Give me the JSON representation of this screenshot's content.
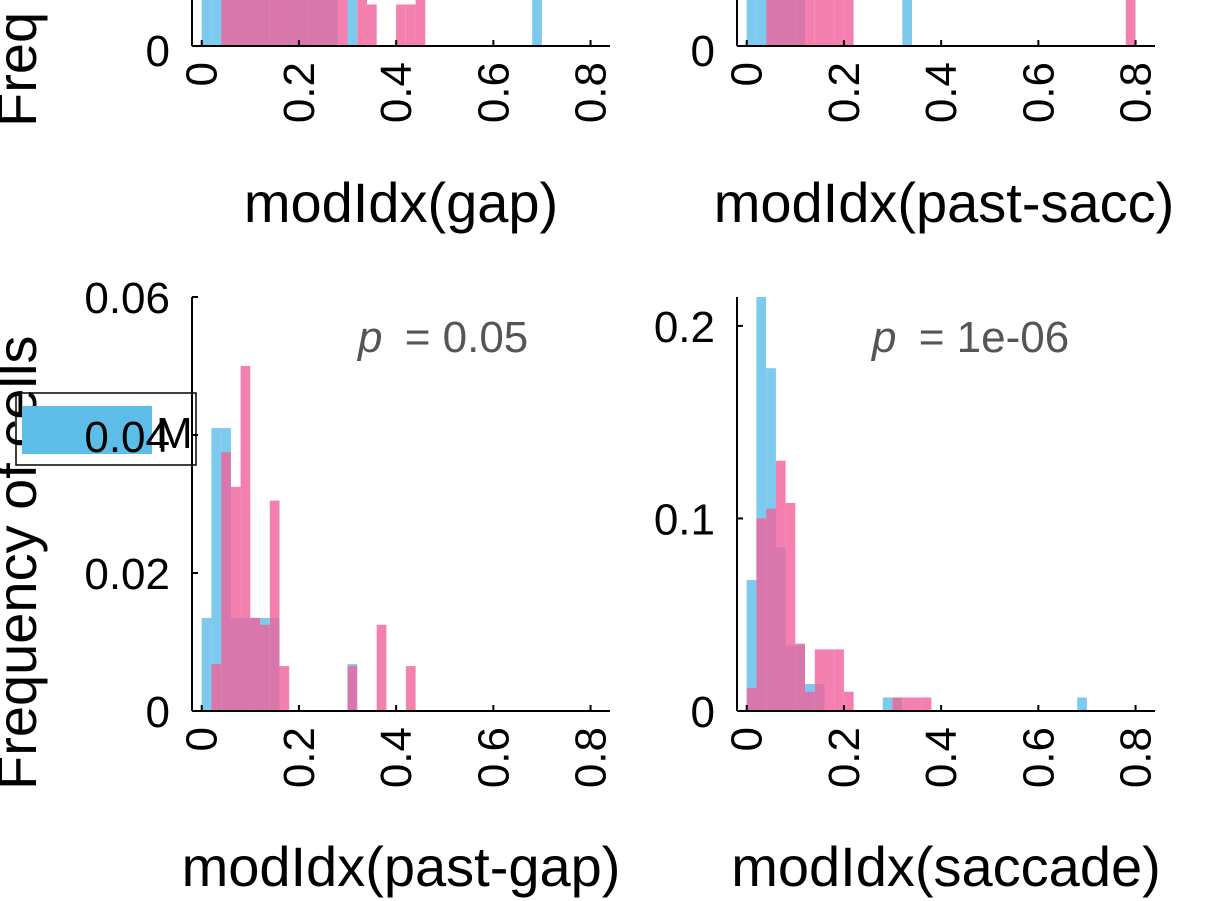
{
  "figure": {
    "ylabel": "Frequency of cells",
    "ylabel_top_fragment": "Freq",
    "legend_fragment": "M",
    "colors": {
      "blue": "#5bbde8",
      "pink": "#f0609a",
      "pvalue_text": "#555555"
    },
    "opacity": 0.8
  },
  "chart_data": [
    {
      "id": "gap",
      "type": "histogram",
      "xlabel": "modIdx(gap)",
      "xticks": [
        "0",
        "0.2",
        "0.4",
        "0.6",
        "0.8"
      ],
      "xlim": [
        -0.02,
        0.84
      ],
      "yticks": [
        "0"
      ],
      "ylim": [
        0,
        0.012
      ],
      "bins": [
        0.0,
        0.02,
        0.04,
        0.06,
        0.08,
        0.1,
        0.12,
        0.14,
        0.16,
        0.18,
        0.2,
        0.22,
        0.24,
        0.26,
        0.28,
        0.3,
        0.32,
        0.34,
        0.36,
        0.38,
        0.4,
        0.42,
        0.44,
        0.46,
        0.48,
        0.5,
        0.52,
        0.54,
        0.56,
        0.58,
        0.6,
        0.62,
        0.64,
        0.66,
        0.68,
        0.7
      ],
      "series": [
        {
          "color": "blue",
          "values": [
            0.012,
            0.012,
            0.012,
            0.012,
            0.012,
            0.012,
            0.012,
            0.012,
            0.012,
            0.012,
            0.012,
            0.012,
            0.012,
            0.012,
            0,
            0.0036,
            0,
            0,
            0,
            0,
            0,
            0,
            0,
            0,
            0,
            0,
            0,
            0,
            0,
            0,
            0,
            0,
            0,
            0,
            0.0036,
            0
          ]
        },
        {
          "color": "pink",
          "values": [
            0,
            0,
            0.012,
            0.012,
            0.012,
            0.012,
            0.012,
            0.012,
            0.012,
            0.012,
            0.012,
            0.012,
            0.012,
            0.012,
            0.0054,
            0,
            0.0054,
            0.003,
            0,
            0,
            0.003,
            0.003,
            0.0054,
            0,
            0,
            0,
            0,
            0,
            0,
            0,
            0,
            0,
            0,
            0,
            0,
            0
          ]
        }
      ]
    },
    {
      "id": "past-sacc",
      "type": "histogram",
      "xlabel": "modIdx(past-sacc)",
      "xticks": [
        "0",
        "0.2",
        "0.4",
        "0.6",
        "0.8"
      ],
      "xlim": [
        -0.02,
        0.84
      ],
      "yticks": [
        "0"
      ],
      "ylim": [
        0,
        0.012
      ],
      "bins": [
        0.0,
        0.02,
        0.04,
        0.06,
        0.08,
        0.1,
        0.12,
        0.14,
        0.16,
        0.18,
        0.2,
        0.22,
        0.24,
        0.26,
        0.28,
        0.3,
        0.32,
        0.34,
        0.36,
        0.38,
        0.4,
        0.42,
        0.44,
        0.46,
        0.48,
        0.5,
        0.52,
        0.54,
        0.56,
        0.58,
        0.6,
        0.62,
        0.64,
        0.66,
        0.68,
        0.7,
        0.72,
        0.74,
        0.76,
        0.78
      ],
      "series": [
        {
          "color": "blue",
          "values": [
            0.012,
            0.012,
            0.012,
            0.012,
            0.012,
            0.012,
            0,
            0,
            0,
            0,
            0,
            0,
            0,
            0,
            0,
            0,
            0.012,
            0,
            0,
            0,
            0,
            0,
            0,
            0,
            0,
            0,
            0,
            0,
            0,
            0,
            0,
            0,
            0,
            0,
            0,
            0,
            0,
            0,
            0,
            0
          ]
        },
        {
          "color": "pink",
          "values": [
            0,
            0,
            0.012,
            0.012,
            0.012,
            0.012,
            0.012,
            0.012,
            0.012,
            0.012,
            0.012,
            0,
            0,
            0,
            0,
            0,
            0,
            0,
            0,
            0,
            0,
            0,
            0,
            0,
            0,
            0,
            0,
            0,
            0,
            0,
            0,
            0,
            0,
            0,
            0,
            0,
            0,
            0,
            0,
            0.0054
          ]
        }
      ]
    },
    {
      "id": "past-gap",
      "type": "histogram",
      "xlabel": "modIdx(past-gap)",
      "annotation": {
        "p_symbol": "p",
        "p_text": "= 0.05"
      },
      "xticks": [
        "0",
        "0.2",
        "0.4",
        "0.6",
        "0.8"
      ],
      "xlim": [
        -0.02,
        0.84
      ],
      "yticks": [
        "0",
        "0.02",
        "0.04",
        "0.06"
      ],
      "ylim": [
        0,
        0.06
      ],
      "bins": [
        0.0,
        0.02,
        0.04,
        0.06,
        0.08,
        0.1,
        0.12,
        0.14,
        0.16,
        0.18,
        0.2,
        0.22,
        0.24,
        0.26,
        0.28,
        0.3,
        0.32,
        0.34,
        0.36,
        0.38,
        0.4,
        0.42,
        0.44,
        0.46
      ],
      "series": [
        {
          "color": "blue",
          "values": [
            0.0135,
            0.041,
            0.041,
            0.0135,
            0.0135,
            0.0135,
            0.0135,
            0.0135,
            0,
            0,
            0,
            0,
            0,
            0,
            0,
            0.0068,
            0,
            0,
            0,
            0,
            0,
            0,
            0,
            0
          ]
        },
        {
          "color": "pink",
          "values": [
            0,
            0.0068,
            0.0375,
            0.0325,
            0.05,
            0.0135,
            0.0125,
            0.0305,
            0.0065,
            0,
            0,
            0,
            0,
            0,
            0,
            0.0065,
            0,
            0,
            0.0125,
            0,
            0,
            0.0065,
            0,
            0
          ]
        }
      ]
    },
    {
      "id": "saccade",
      "type": "histogram",
      "xlabel": "modIdx(saccade)",
      "annotation": {
        "p_symbol": "p",
        "p_text": "= 1e-06"
      },
      "xticks": [
        "0",
        "0.2",
        "0.4",
        "0.6",
        "0.8"
      ],
      "xlim": [
        -0.02,
        0.84
      ],
      "yticks": [
        "0",
        "0.1",
        "0.2"
      ],
      "ylim": [
        0,
        0.215
      ],
      "bins": [
        0.0,
        0.02,
        0.04,
        0.06,
        0.08,
        0.1,
        0.12,
        0.14,
        0.16,
        0.18,
        0.2,
        0.22,
        0.24,
        0.26,
        0.28,
        0.3,
        0.32,
        0.34,
        0.36,
        0.38,
        0.4,
        0.42,
        0.44,
        0.46,
        0.48,
        0.5,
        0.52,
        0.54,
        0.56,
        0.58,
        0.6,
        0.62,
        0.64,
        0.66,
        0.68,
        0.7
      ],
      "series": [
        {
          "color": "blue",
          "values": [
            0.068,
            0.215,
            0.178,
            0.085,
            0.034,
            0.034,
            0.014,
            0.014,
            0,
            0,
            0,
            0,
            0,
            0,
            0.007,
            0.007,
            0,
            0,
            0,
            0,
            0,
            0,
            0,
            0,
            0,
            0,
            0,
            0,
            0,
            0,
            0,
            0,
            0,
            0,
            0.007,
            0
          ]
        },
        {
          "color": "pink",
          "values": [
            0.012,
            0.1,
            0.105,
            0.13,
            0.108,
            0.035,
            0.01,
            0.032,
            0.032,
            0.032,
            0.01,
            0,
            0,
            0,
            0,
            0.007,
            0.007,
            0.007,
            0.007,
            0,
            0,
            0,
            0,
            0,
            0,
            0,
            0,
            0,
            0,
            0,
            0,
            0,
            0,
            0,
            0,
            0
          ]
        }
      ]
    }
  ]
}
